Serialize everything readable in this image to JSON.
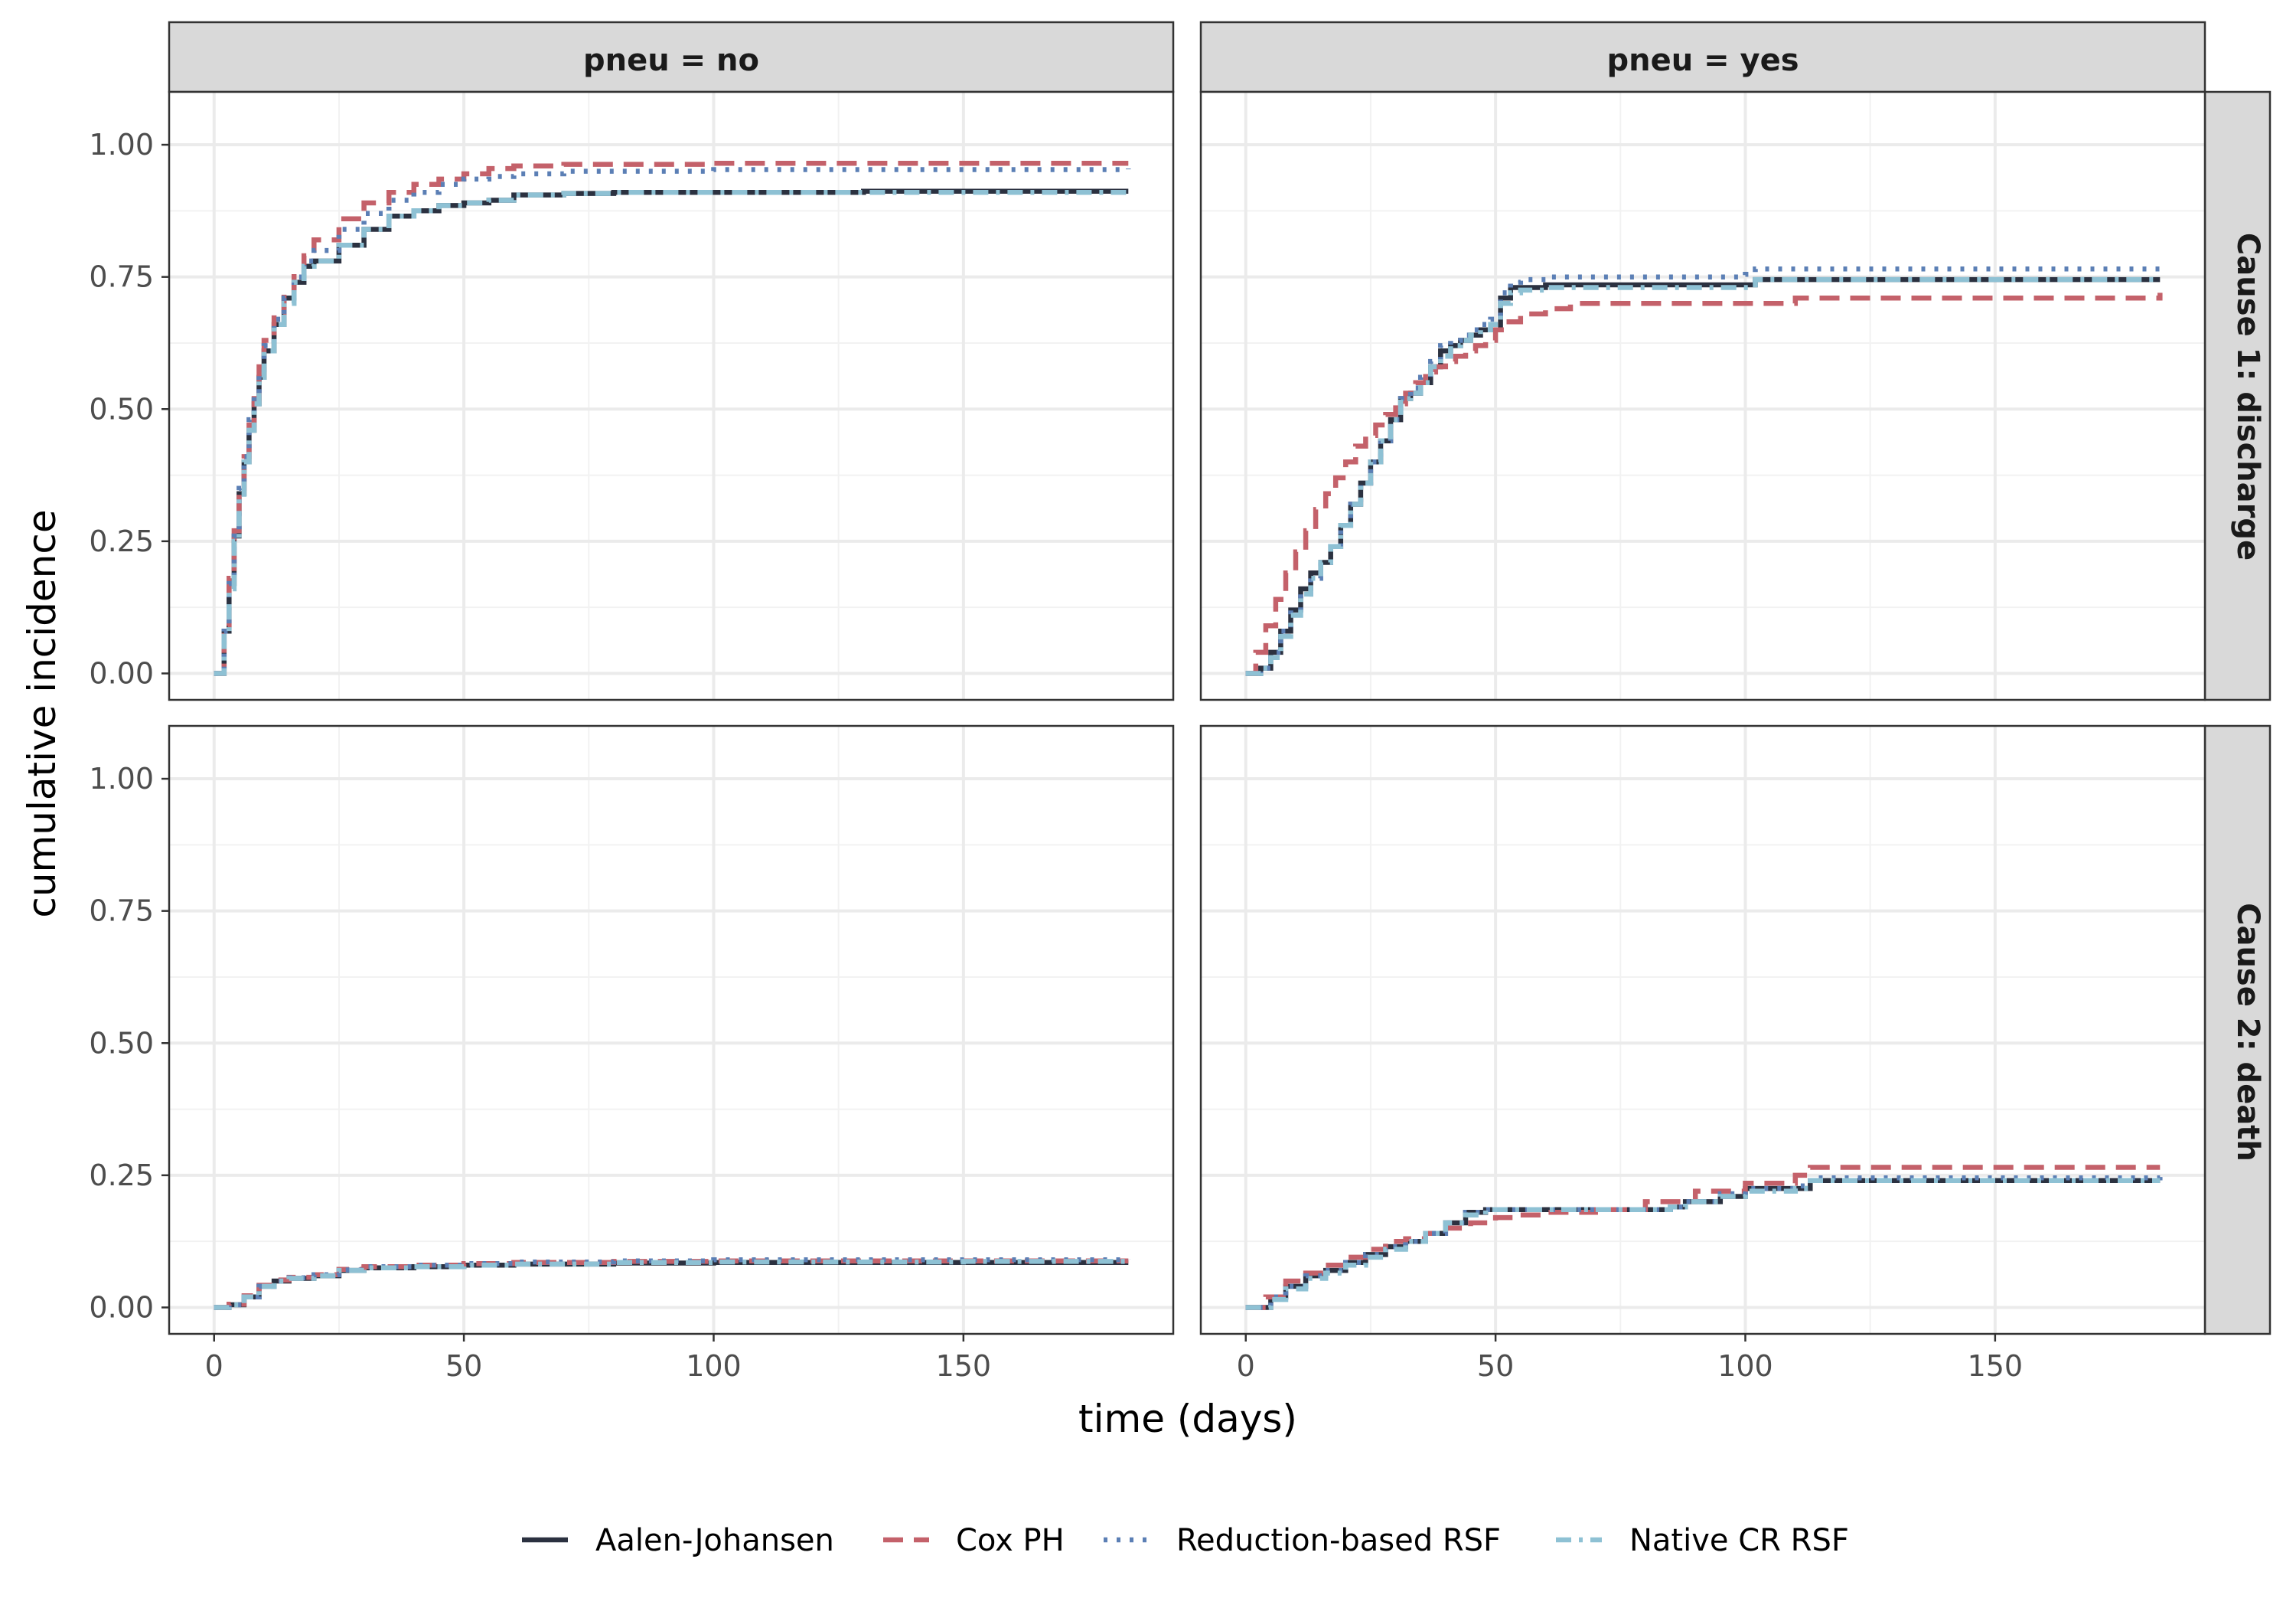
{
  "chart_data": {
    "type": "line",
    "step": true,
    "xlabel": "time (days)",
    "ylabel": "cumulative incidence",
    "xlim": [
      -9,
      192
    ],
    "ylim": [
      -0.05,
      1.1
    ],
    "xticks": [
      0,
      50,
      100,
      150
    ],
    "yticks": [
      0,
      0.25,
      0.5,
      0.75,
      1
    ],
    "xtick_labels": [
      "0",
      "50",
      "100",
      "150"
    ],
    "ytick_labels": [
      "0.00",
      "0.25",
      "0.50",
      "0.75",
      "1.00"
    ],
    "grid": true,
    "legend_position": "bottom",
    "col_facets": [
      "pneu = no",
      "pneu = yes"
    ],
    "row_facets": [
      "Cause 1: discharge",
      "Cause 2: death"
    ],
    "legend": [
      {
        "name": "Aalen-Johansen",
        "color": "#2b3140",
        "dash": "solid"
      },
      {
        "name": "Cox PH",
        "color": "#c4616a",
        "dash": "dashed"
      },
      {
        "name": "Reduction-based RSF",
        "color": "#5b7fb5",
        "dash": "dotted"
      },
      {
        "name": "Native CR RSF",
        "color": "#8ec1d4",
        "dash": "dashdot"
      }
    ],
    "panels": [
      {
        "col": "pneu = no",
        "row": "Cause 1: discharge",
        "series": [
          {
            "name": "Aalen-Johansen",
            "x": [
              0,
              2,
              3,
              4,
              5,
              6,
              7,
              8,
              9,
              10,
              12,
              14,
              16,
              18,
              20,
              25,
              30,
              35,
              40,
              45,
              50,
              55,
              60,
              70,
              80,
              100,
              130,
              150,
              183
            ],
            "y": [
              0,
              0.08,
              0.17,
              0.26,
              0.34,
              0.4,
              0.46,
              0.51,
              0.56,
              0.61,
              0.66,
              0.71,
              0.74,
              0.77,
              0.78,
              0.81,
              0.84,
              0.865,
              0.875,
              0.885,
              0.89,
              0.895,
              0.905,
              0.908,
              0.91,
              0.91,
              0.912,
              0.912,
              0.912
            ]
          },
          {
            "name": "Cox PH",
            "x": [
              0,
              2,
              3,
              4,
              5,
              6,
              7,
              8,
              9,
              10,
              12,
              14,
              16,
              18,
              20,
              25,
              30,
              35,
              40,
              45,
              50,
              55,
              60,
              70,
              100,
              183
            ],
            "y": [
              0,
              0.09,
              0.18,
              0.27,
              0.35,
              0.41,
              0.47,
              0.52,
              0.58,
              0.63,
              0.68,
              0.72,
              0.76,
              0.79,
              0.82,
              0.86,
              0.89,
              0.91,
              0.925,
              0.935,
              0.945,
              0.955,
              0.96,
              0.963,
              0.965,
              0.965
            ]
          },
          {
            "name": "Reduction-based RSF",
            "x": [
              0,
              2,
              3,
              4,
              5,
              6,
              7,
              8,
              9,
              10,
              12,
              14,
              16,
              18,
              20,
              25,
              30,
              35,
              40,
              45,
              50,
              55,
              60,
              70,
              100,
              183
            ],
            "y": [
              0,
              0.08,
              0.17,
              0.26,
              0.35,
              0.41,
              0.48,
              0.53,
              0.57,
              0.62,
              0.67,
              0.71,
              0.75,
              0.78,
              0.8,
              0.84,
              0.87,
              0.895,
              0.91,
              0.925,
              0.935,
              0.94,
              0.945,
              0.95,
              0.953,
              0.955
            ]
          },
          {
            "name": "Native CR RSF",
            "x": [
              0,
              2,
              3,
              4,
              5,
              6,
              7,
              8,
              9,
              10,
              12,
              14,
              16,
              18,
              20,
              25,
              30,
              35,
              40,
              45,
              50,
              55,
              60,
              70,
              80,
              100,
              183
            ],
            "y": [
              0,
              0.08,
              0.16,
              0.25,
              0.33,
              0.4,
              0.46,
              0.51,
              0.56,
              0.61,
              0.66,
              0.7,
              0.74,
              0.77,
              0.78,
              0.81,
              0.84,
              0.865,
              0.875,
              0.885,
              0.89,
              0.895,
              0.905,
              0.908,
              0.91,
              0.91,
              0.912
            ]
          }
        ]
      },
      {
        "col": "pneu = yes",
        "row": "Cause 1: discharge",
        "series": [
          {
            "name": "Aalen-Johansen",
            "x": [
              0,
              3,
              5,
              7,
              9,
              11,
              13,
              15,
              17,
              19,
              21,
              23,
              25,
              27,
              29,
              31,
              33,
              35,
              37,
              39,
              41,
              43,
              45,
              47,
              49,
              51,
              53,
              55,
              60,
              100,
              102,
              183
            ],
            "y": [
              0,
              0.01,
              0.04,
              0.08,
              0.12,
              0.16,
              0.19,
              0.21,
              0.24,
              0.28,
              0.32,
              0.36,
              0.4,
              0.44,
              0.48,
              0.52,
              0.53,
              0.55,
              0.58,
              0.61,
              0.62,
              0.63,
              0.64,
              0.65,
              0.65,
              0.71,
              0.73,
              0.73,
              0.735,
              0.735,
              0.745,
              0.745
            ]
          },
          {
            "name": "Cox PH",
            "x": [
              0,
              2,
              4,
              6,
              8,
              10,
              12,
              14,
              16,
              18,
              20,
              22,
              24,
              26,
              28,
              30,
              32,
              34,
              36,
              38,
              40,
              42,
              44,
              46,
              48,
              50,
              52,
              55,
              60,
              65,
              100,
              110,
              183
            ],
            "y": [
              0,
              0.04,
              0.09,
              0.14,
              0.19,
              0.23,
              0.27,
              0.31,
              0.34,
              0.37,
              0.4,
              0.43,
              0.45,
              0.47,
              0.49,
              0.51,
              0.53,
              0.55,
              0.57,
              0.58,
              0.59,
              0.6,
              0.61,
              0.62,
              0.63,
              0.65,
              0.665,
              0.68,
              0.69,
              0.7,
              0.7,
              0.71,
              0.72
            ]
          },
          {
            "name": "Reduction-based RSF",
            "x": [
              0,
              3,
              5,
              7,
              9,
              11,
              13,
              15,
              17,
              19,
              21,
              23,
              25,
              27,
              29,
              31,
              33,
              35,
              37,
              39,
              41,
              43,
              45,
              47,
              49,
              51,
              53,
              55,
              60,
              100,
              102,
              183
            ],
            "y": [
              0,
              0.01,
              0.04,
              0.08,
              0.12,
              0.15,
              0.18,
              0.21,
              0.24,
              0.28,
              0.32,
              0.36,
              0.4,
              0.44,
              0.48,
              0.52,
              0.54,
              0.56,
              0.59,
              0.62,
              0.63,
              0.64,
              0.65,
              0.66,
              0.67,
              0.72,
              0.74,
              0.745,
              0.75,
              0.755,
              0.765,
              0.77
            ]
          },
          {
            "name": "Native CR RSF",
            "x": [
              0,
              3,
              5,
              7,
              9,
              11,
              13,
              15,
              17,
              19,
              21,
              23,
              25,
              27,
              29,
              31,
              33,
              35,
              37,
              39,
              41,
              43,
              45,
              47,
              49,
              51,
              53,
              55,
              60,
              100,
              102,
              183
            ],
            "y": [
              0,
              0.01,
              0.03,
              0.07,
              0.11,
              0.15,
              0.18,
              0.21,
              0.24,
              0.28,
              0.32,
              0.36,
              0.4,
              0.44,
              0.48,
              0.52,
              0.53,
              0.55,
              0.58,
              0.6,
              0.62,
              0.63,
              0.64,
              0.65,
              0.66,
              0.7,
              0.72,
              0.725,
              0.73,
              0.73,
              0.745,
              0.745
            ]
          }
        ]
      },
      {
        "col": "pneu = no",
        "row": "Cause 2: death",
        "series": [
          {
            "name": "Aalen-Johansen",
            "x": [
              0,
              3,
              6,
              9,
              12,
              15,
              20,
              25,
              30,
              40,
              50,
              60,
              80,
              100,
              150,
              183
            ],
            "y": [
              0,
              0.005,
              0.02,
              0.04,
              0.05,
              0.055,
              0.06,
              0.07,
              0.075,
              0.077,
              0.08,
              0.082,
              0.084,
              0.085,
              0.085,
              0.085
            ]
          },
          {
            "name": "Cox PH",
            "x": [
              0,
              3,
              6,
              9,
              12,
              15,
              20,
              25,
              30,
              40,
              50,
              60,
              80,
              100,
              150,
              183
            ],
            "y": [
              0,
              0.006,
              0.022,
              0.042,
              0.052,
              0.057,
              0.062,
              0.072,
              0.077,
              0.08,
              0.083,
              0.085,
              0.087,
              0.088,
              0.088,
              0.088
            ]
          },
          {
            "name": "Reduction-based RSF",
            "x": [
              0,
              3,
              6,
              9,
              12,
              15,
              20,
              25,
              30,
              40,
              50,
              60,
              80,
              100,
              150,
              183
            ],
            "y": [
              0,
              0.005,
              0.02,
              0.04,
              0.05,
              0.056,
              0.062,
              0.071,
              0.077,
              0.08,
              0.083,
              0.086,
              0.088,
              0.09,
              0.09,
              0.092
            ]
          },
          {
            "name": "Native CR RSF",
            "x": [
              0,
              3,
              6,
              9,
              12,
              15,
              20,
              25,
              30,
              40,
              50,
              60,
              80,
              100,
              150,
              183
            ],
            "y": [
              0,
              0.005,
              0.02,
              0.04,
              0.05,
              0.055,
              0.06,
              0.07,
              0.075,
              0.077,
              0.08,
              0.082,
              0.085,
              0.086,
              0.087,
              0.088
            ]
          }
        ]
      },
      {
        "col": "pneu = yes",
        "row": "Cause 2: death",
        "series": [
          {
            "name": "Aalen-Johansen",
            "x": [
              0,
              5,
              8,
              12,
              16,
              20,
              24,
              28,
              32,
              36,
              40,
              44,
              48,
              60,
              70,
              85,
              88,
              95,
              100,
              110,
              113,
              183
            ],
            "y": [
              0,
              0.02,
              0.04,
              0.06,
              0.07,
              0.085,
              0.1,
              0.115,
              0.125,
              0.14,
              0.16,
              0.18,
              0.185,
              0.185,
              0.185,
              0.19,
              0.2,
              0.21,
              0.225,
              0.225,
              0.24,
              0.24
            ]
          },
          {
            "name": "Cox PH",
            "x": [
              0,
              4,
              8,
              12,
              16,
              20,
              24,
              28,
              32,
              36,
              40,
              45,
              50,
              55,
              60,
              70,
              80,
              90,
              100,
              110,
              113,
              183
            ],
            "y": [
              0,
              0.02,
              0.05,
              0.065,
              0.08,
              0.095,
              0.11,
              0.125,
              0.13,
              0.14,
              0.15,
              0.16,
              0.17,
              0.175,
              0.18,
              0.185,
              0.2,
              0.22,
              0.235,
              0.25,
              0.265,
              0.265
            ]
          },
          {
            "name": "Reduction-based RSF",
            "x": [
              0,
              5,
              8,
              12,
              16,
              20,
              24,
              28,
              32,
              36,
              40,
              44,
              48,
              60,
              70,
              85,
              88,
              95,
              100,
              110,
              113,
              183
            ],
            "y": [
              0,
              0.02,
              0.04,
              0.06,
              0.07,
              0.085,
              0.1,
              0.115,
              0.125,
              0.14,
              0.16,
              0.18,
              0.185,
              0.185,
              0.185,
              0.19,
              0.2,
              0.215,
              0.225,
              0.23,
              0.245,
              0.25
            ]
          },
          {
            "name": "Native CR RSF",
            "x": [
              0,
              5,
              8,
              12,
              16,
              20,
              24,
              28,
              32,
              36,
              40,
              44,
              48,
              60,
              70,
              85,
              88,
              95,
              100,
              110,
              113,
              183
            ],
            "y": [
              0,
              0.015,
              0.035,
              0.055,
              0.065,
              0.08,
              0.095,
              0.11,
              0.125,
              0.14,
              0.16,
              0.175,
              0.185,
              0.185,
              0.185,
              0.19,
              0.2,
              0.21,
              0.22,
              0.225,
              0.24,
              0.24
            ]
          }
        ]
      }
    ]
  }
}
